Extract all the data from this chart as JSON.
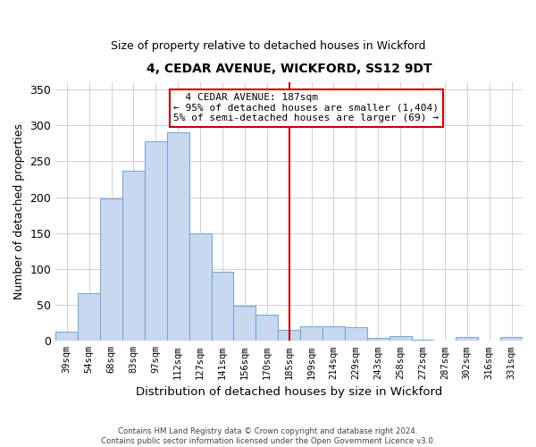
{
  "title": "4, CEDAR AVENUE, WICKFORD, SS12 9DT",
  "subtitle": "Size of property relative to detached houses in Wickford",
  "xlabel": "Distribution of detached houses by size in Wickford",
  "ylabel": "Number of detached properties",
  "bin_labels": [
    "39sqm",
    "54sqm",
    "68sqm",
    "83sqm",
    "97sqm",
    "112sqm",
    "127sqm",
    "141sqm",
    "156sqm",
    "170sqm",
    "185sqm",
    "199sqm",
    "214sqm",
    "229sqm",
    "243sqm",
    "258sqm",
    "272sqm",
    "287sqm",
    "302sqm",
    "316sqm",
    "331sqm"
  ],
  "bar_heights": [
    13,
    66,
    198,
    237,
    278,
    290,
    150,
    96,
    49,
    36,
    15,
    20,
    20,
    19,
    4,
    7,
    2,
    0,
    5,
    0,
    5
  ],
  "bar_color": "#c8d8f0",
  "bar_edge_color": "#7aaacf",
  "vline_x": 10,
  "vline_color": "#cc0000",
  "ylim": [
    0,
    360
  ],
  "yticks": [
    0,
    50,
    100,
    150,
    200,
    250,
    300,
    350
  ],
  "annotation_title": "4 CEDAR AVENUE: 187sqm",
  "annotation_line1": "← 95% of detached houses are smaller (1,404)",
  "annotation_line2": "5% of semi-detached houses are larger (69) →",
  "annotation_box_color": "#ffffff",
  "annotation_border_color": "#cc0000",
  "footnote1": "Contains HM Land Registry data © Crown copyright and database right 2024.",
  "footnote2": "Contains public sector information licensed under the Open Government Licence v3.0."
}
